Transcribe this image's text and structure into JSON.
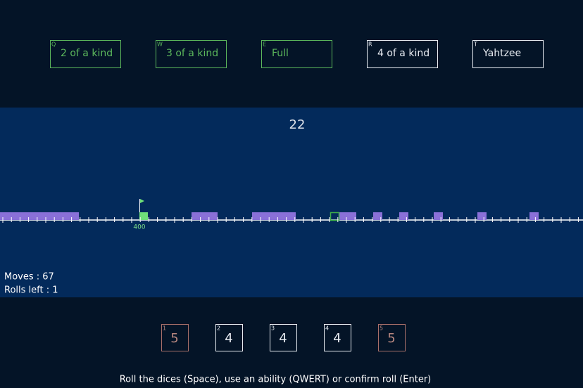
{
  "abilities": [
    {
      "key": "Q",
      "label": "2 of a kind",
      "available": true
    },
    {
      "key": "W",
      "label": "3 of a kind",
      "available": true
    },
    {
      "key": "E",
      "label": "Full",
      "available": true
    },
    {
      "key": "R",
      "label": "4 of a kind",
      "available": false
    },
    {
      "key": "T",
      "label": "Yahtzee",
      "available": false
    }
  ],
  "score": "22",
  "track": {
    "flag_label": "400"
  },
  "status": {
    "moves": "Moves : 67",
    "rolls_left": "Rolls left : 1"
  },
  "dice": [
    {
      "key": "1",
      "value": 5,
      "held": true
    },
    {
      "key": "2",
      "value": 4,
      "held": false
    },
    {
      "key": "3",
      "value": 4,
      "held": false
    },
    {
      "key": "4",
      "value": 4,
      "held": false
    },
    {
      "key": "5",
      "value": 5,
      "held": true
    }
  ],
  "instructions": "Roll the dices (Space), use an ability (QWERT) or confirm roll (Enter)"
}
